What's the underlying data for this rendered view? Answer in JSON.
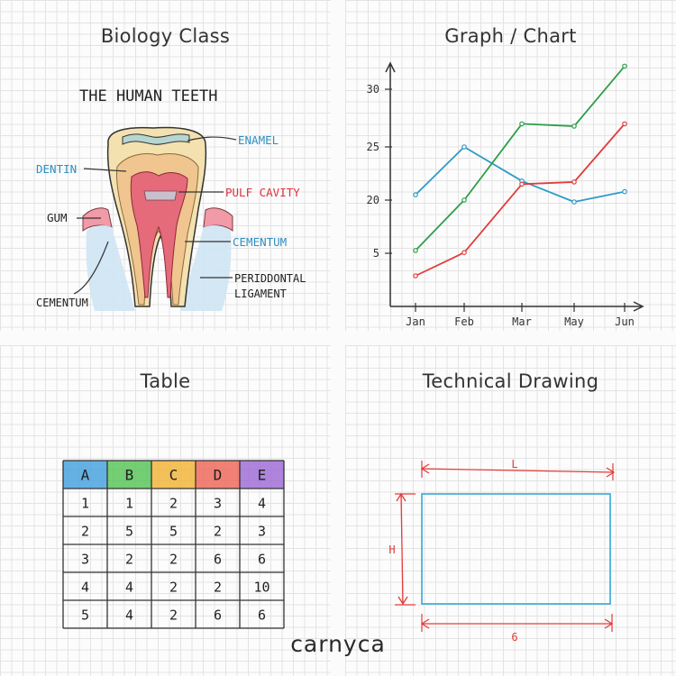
{
  "biology": {
    "panel_title": "Biology Class",
    "drawing_title": "THE HUMAN TEETH",
    "labels": {
      "enamel": "ENAMEL",
      "dentin": "DENTIN",
      "pulp": "PULF CAVITY",
      "gum": "GUM",
      "cementum_right": "CEMENTUM",
      "periodontal_1": "PERIDDONTAL",
      "periodontal_2": "LIGAMENT",
      "cementum_left": "CEMENTUM"
    }
  },
  "graph": {
    "panel_title": "Graph / Chart"
  },
  "chart_data": {
    "type": "line",
    "title": "",
    "categories": [
      "Jan",
      "Feb",
      "Mar",
      "May",
      "Jun"
    ],
    "x_tick_labels": [
      "Jan",
      "Feb",
      "Mar",
      "May",
      "Jun"
    ],
    "y_tick_labels": [
      "5",
      "20",
      "25",
      "30"
    ],
    "grid": false,
    "series": [
      {
        "color": "#2f9bc7",
        "values": [
          20.5,
          25,
          21.8,
          19.5,
          20.8
        ]
      },
      {
        "color": "#2e9e48",
        "values": [
          5.8,
          20,
          27,
          26.8,
          32
        ]
      },
      {
        "color": "#e23c3c",
        "values": [
          1.8,
          5.2,
          21.5,
          21.7,
          27
        ]
      }
    ]
  },
  "table": {
    "panel_title": "Table",
    "headers": [
      "A",
      "B",
      "C",
      "D",
      "E"
    ],
    "header_colors": [
      "#4aa3df",
      "#5cc55a",
      "#f2b53c",
      "#ef6b5c",
      "#a06fd6"
    ],
    "rows": [
      [
        "1",
        "1",
        "2",
        "3",
        "4"
      ],
      [
        "2",
        "5",
        "5",
        "2",
        "3"
      ],
      [
        "3",
        "2",
        "2",
        "6",
        "6"
      ],
      [
        "4",
        "4",
        "2",
        "2",
        "10"
      ],
      [
        "5",
        "4",
        "2",
        "6",
        "6"
      ]
    ]
  },
  "technical": {
    "panel_title": "Technical Drawing",
    "length_label": "L",
    "height_label": "H",
    "bottom_label": "6"
  },
  "brand": "carnyca"
}
